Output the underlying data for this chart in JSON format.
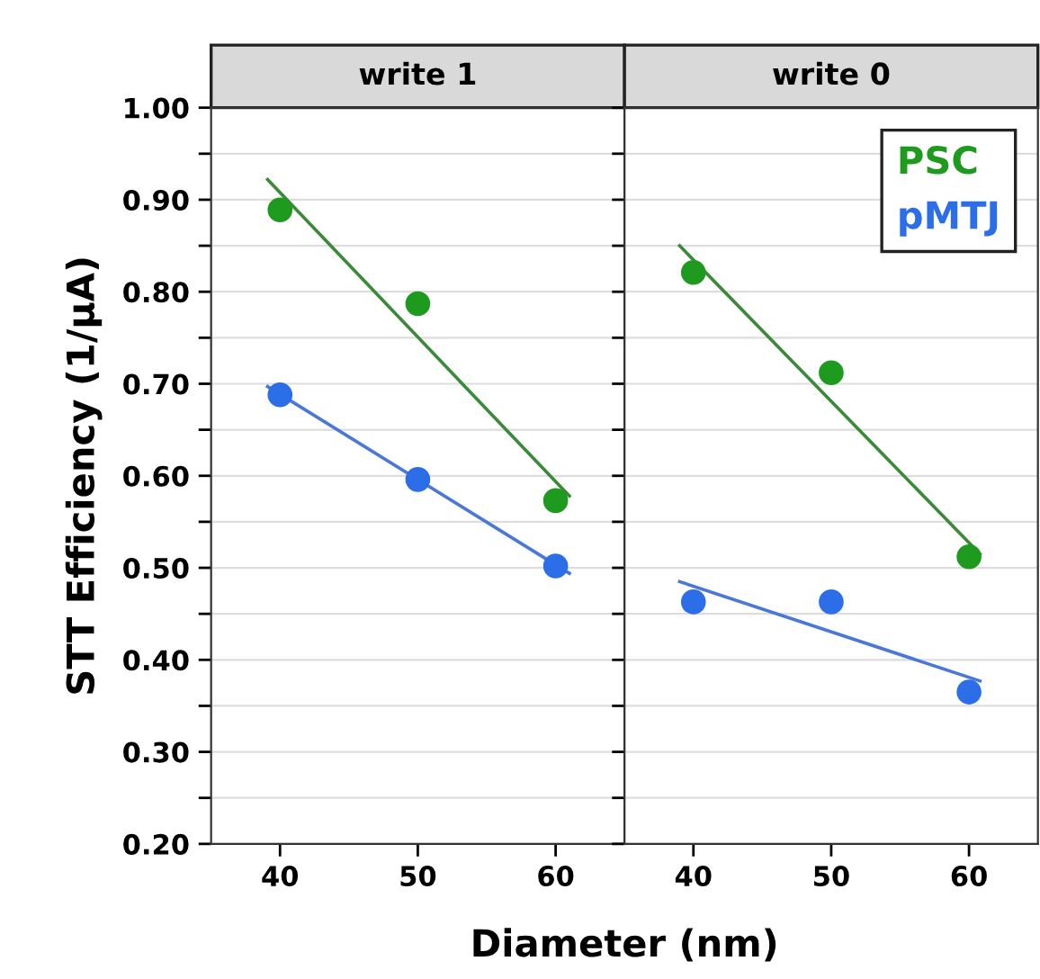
{
  "chart_data": [
    {
      "type": "scatter",
      "title": "write 1",
      "ylabel": "STT Efficiency (1/μA)",
      "xlabel": "Diameter (nm)",
      "x": [
        40,
        50,
        60
      ],
      "series": [
        {
          "color": "#1e9a1e",
          "values": [
            0.889,
            0.787,
            0.573
          ]
        },
        {
          "color": "#2b6ee8",
          "values": [
            0.688,
            0.596,
            0.502
          ]
        },
        {
          "type": "line",
          "marker": "none",
          "color": "#3a8a3a",
          "x": [
            39.1,
            61.0
          ],
          "values": [
            0.922,
            0.578
          ]
        },
        {
          "type": "line",
          "marker": "none",
          "color": "#4a78d8",
          "x": [
            39.1,
            61.0
          ],
          "values": [
            0.697,
            0.494
          ]
        }
      ],
      "xlim": [
        35,
        65
      ],
      "ylim": [
        0.2,
        1.0
      ],
      "xticks": [
        40,
        50,
        60
      ],
      "yticks": [
        {
          "value": 0.2,
          "label": "0.20"
        },
        {
          "value": 0.25,
          "label": null
        },
        {
          "value": 0.3,
          "label": "0.30"
        },
        {
          "value": 0.35,
          "label": null
        },
        {
          "value": 0.4,
          "label": "0.40"
        },
        {
          "value": 0.45,
          "label": null
        },
        {
          "value": 0.5,
          "label": "0.50"
        },
        {
          "value": 0.55,
          "label": null
        },
        {
          "value": 0.6,
          "label": "0.60"
        },
        {
          "value": 0.65,
          "label": null
        },
        {
          "value": 0.7,
          "label": "0.70"
        },
        {
          "value": 0.75,
          "label": null
        },
        {
          "value": 0.8,
          "label": "0.80"
        },
        {
          "value": 0.85,
          "label": null
        },
        {
          "value": 0.9,
          "label": "0.90"
        },
        {
          "value": 0.95,
          "label": null
        },
        {
          "value": 1.0,
          "label": "1.00"
        }
      ],
      "grid": "y",
      "marker": "circle",
      "legend": false
    },
    {
      "type": "scatter",
      "title": "write 0",
      "x": [
        40,
        50,
        60
      ],
      "series": [
        {
          "name": "PSC",
          "color": "#1e9a1e",
          "values": [
            0.821,
            0.712,
            0.512
          ]
        },
        {
          "name": "pMTJ",
          "color": "#2b6ee8",
          "values": [
            0.463,
            0.463,
            0.365
          ]
        },
        {
          "type": "line",
          "marker": "none",
          "color": "#3a8a3a",
          "x": [
            39.0,
            60.8
          ],
          "values": [
            0.85,
            0.515
          ]
        },
        {
          "type": "line",
          "marker": "none",
          "color": "#4a78d8",
          "x": [
            39.0,
            60.8
          ],
          "values": [
            0.485,
            0.377
          ]
        }
      ],
      "xlim": [
        35,
        65
      ],
      "ylim": [
        0.2,
        1.0
      ],
      "xticks": [
        40,
        50,
        60
      ],
      "yticks": [
        {
          "value": 0.2,
          "label": null
        },
        {
          "value": 0.25,
          "label": null
        },
        {
          "value": 0.3,
          "label": null
        },
        {
          "value": 0.35,
          "label": null
        },
        {
          "value": 0.4,
          "label": null
        },
        {
          "value": 0.45,
          "label": null
        },
        {
          "value": 0.5,
          "label": null
        },
        {
          "value": 0.55,
          "label": null
        },
        {
          "value": 0.6,
          "label": null
        },
        {
          "value": 0.65,
          "label": null
        },
        {
          "value": 0.7,
          "label": null
        },
        {
          "value": 0.75,
          "label": null
        },
        {
          "value": 0.8,
          "label": null
        },
        {
          "value": 0.85,
          "label": null
        },
        {
          "value": 0.9,
          "label": null
        },
        {
          "value": 0.95,
          "label": null
        },
        {
          "value": 1.0,
          "label": null
        }
      ],
      "grid": "y",
      "marker": "circle",
      "legend": "top right",
      "tick_labels": "x"
    }
  ]
}
